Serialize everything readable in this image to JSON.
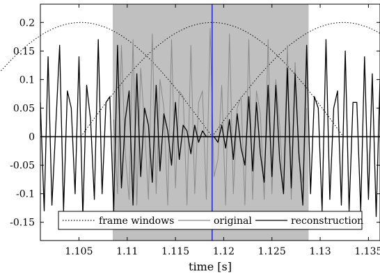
{
  "chart_data": {
    "type": "line",
    "title": "",
    "xlabel": "time [s]",
    "ylabel": "",
    "xlim": [
      1.101,
      1.1362
    ],
    "ylim": [
      -0.182,
      0.232
    ],
    "xticks": [
      1.105,
      1.11,
      1.115,
      1.12,
      1.125,
      1.13,
      1.135
    ],
    "xtick_labels": [
      "1.105",
      "1.11",
      "1.115",
      "1.12",
      "1.125",
      "1.13",
      "1.135"
    ],
    "yticks": [
      0.2,
      0.15,
      0.1,
      0.05,
      0,
      -0.05,
      -0.1,
      -0.15
    ],
    "ytick_labels": [
      "0.2",
      "0.15",
      "0.1",
      "0.05",
      "0",
      "-0.05",
      "-0.1",
      "-0.15"
    ],
    "grid": false,
    "legend_position": "bottom-center",
    "shaded_region": {
      "x": [
        1.1085,
        1.1288
      ],
      "color": "#c0c0c0"
    },
    "vertical_marker": {
      "x": 1.1188,
      "color": "#1a1aff"
    },
    "zero_line": {
      "y": 0,
      "color": "#000000"
    },
    "frame_windows": {
      "amplitude": 0.2,
      "peaks": [
        1.1052,
        1.1188,
        1.1324
      ],
      "half_width": 0.0136,
      "style": "dotted"
    },
    "series": [
      {
        "name": "original",
        "color": "#8a8a8a",
        "x": [
          1.1086,
          1.109,
          1.1094,
          1.1098,
          1.1102,
          1.1106,
          1.111,
          1.1114,
          1.1118,
          1.1122,
          1.1126,
          1.113,
          1.1134,
          1.1138,
          1.1142,
          1.1146,
          1.115,
          1.1154,
          1.1158,
          1.1162,
          1.1166,
          1.117,
          1.1174,
          1.1178,
          1.1182,
          1.1186,
          1.119,
          1.1194,
          1.1198,
          1.1202,
          1.1206,
          1.121,
          1.1214,
          1.1218,
          1.1222,
          1.1226,
          1.123,
          1.1234,
          1.1238,
          1.1242,
          1.1246,
          1.125,
          1.1254,
          1.1258,
          1.1262,
          1.1266,
          1.127,
          1.1274,
          1.1278,
          1.1282,
          1.1286
        ],
        "values": [
          0.03,
          -0.1,
          0.16,
          -0.03,
          -0.11,
          0.17,
          -0.12,
          0.12,
          0.02,
          -0.11,
          0.18,
          -0.1,
          0.1,
          0.05,
          -0.12,
          0.17,
          -0.09,
          0.08,
          0.07,
          -0.12,
          0.16,
          -0.1,
          0.06,
          0.08,
          -0.11,
          0.19,
          -0.07,
          -0.04,
          0.09,
          -0.12,
          0.18,
          -0.1,
          0.05,
          0.07,
          -0.12,
          0.17,
          -0.11,
          0.08,
          0.04,
          -0.11,
          0.17,
          -0.1,
          0.1,
          0.02,
          -0.1,
          0.16,
          -0.11,
          0.13,
          -0.04,
          -0.08,
          0.05
        ]
      },
      {
        "name": "reconstruction",
        "color": "#000000",
        "x": [
          1.101,
          1.1014,
          1.1018,
          1.1022,
          1.1026,
          1.103,
          1.1034,
          1.1038,
          1.1042,
          1.1046,
          1.105,
          1.1054,
          1.1058,
          1.1062,
          1.1066,
          1.107,
          1.1074,
          1.1078,
          1.1082,
          1.1086,
          1.109,
          1.1094,
          1.1098,
          1.1102,
          1.1106,
          1.111,
          1.1114,
          1.1118,
          1.1122,
          1.1126,
          1.113,
          1.1134,
          1.1138,
          1.1142,
          1.1146,
          1.115,
          1.1154,
          1.1158,
          1.1162,
          1.1166,
          1.117,
          1.1174,
          1.1178,
          1.1182,
          1.1186,
          1.119,
          1.1194,
          1.1198,
          1.1202,
          1.1206,
          1.121,
          1.1214,
          1.1218,
          1.1222,
          1.1226,
          1.123,
          1.1234,
          1.1238,
          1.1242,
          1.1246,
          1.125,
          1.1254,
          1.1258,
          1.1262,
          1.1266,
          1.127,
          1.1274,
          1.1278,
          1.1282,
          1.1286,
          1.129,
          1.1294,
          1.1298,
          1.1302,
          1.1306,
          1.131,
          1.1314,
          1.1318,
          1.1322,
          1.1326,
          1.133,
          1.1334,
          1.1338,
          1.1342,
          1.1346,
          1.135,
          1.1354,
          1.1358,
          1.1362
        ],
        "values": [
          0.06,
          -0.13,
          0.14,
          -0.12,
          0.02,
          0.16,
          -0.13,
          0.08,
          0.05,
          -0.1,
          0.14,
          -0.14,
          0.09,
          0.03,
          -0.11,
          0.17,
          -0.1,
          0.06,
          0.07,
          -0.13,
          0.16,
          -0.09,
          0.03,
          0.08,
          -0.12,
          0.11,
          -0.07,
          0.05,
          0.02,
          -0.08,
          0.09,
          -0.06,
          0.04,
          0.01,
          -0.05,
          0.06,
          -0.04,
          0.02,
          0.01,
          -0.03,
          0.02,
          -0.01,
          0.01,
          0.0,
          0.0,
          0.0,
          -0.01,
          0.02,
          -0.02,
          0.03,
          -0.04,
          0.04,
          -0.02,
          -0.05,
          0.07,
          -0.06,
          0.06,
          -0.03,
          -0.08,
          0.09,
          -0.07,
          0.09,
          -0.04,
          -0.1,
          0.12,
          -0.09,
          0.11,
          -0.03,
          -0.12,
          0.16,
          -0.1,
          0.07,
          0.05,
          -0.13,
          0.17,
          -0.11,
          0.05,
          0.08,
          -0.12,
          0.15,
          -0.13,
          0.06,
          0.06,
          -0.13,
          0.14,
          -0.11,
          0.11,
          -0.14,
          0.1
        ]
      }
    ],
    "legend": [
      {
        "label": "frame windows",
        "style": "dotted",
        "color": "#000000"
      },
      {
        "label": "original",
        "style": "solid",
        "color": "#8a8a8a"
      },
      {
        "label": "reconstruction",
        "style": "solid",
        "color": "#000000"
      }
    ]
  }
}
